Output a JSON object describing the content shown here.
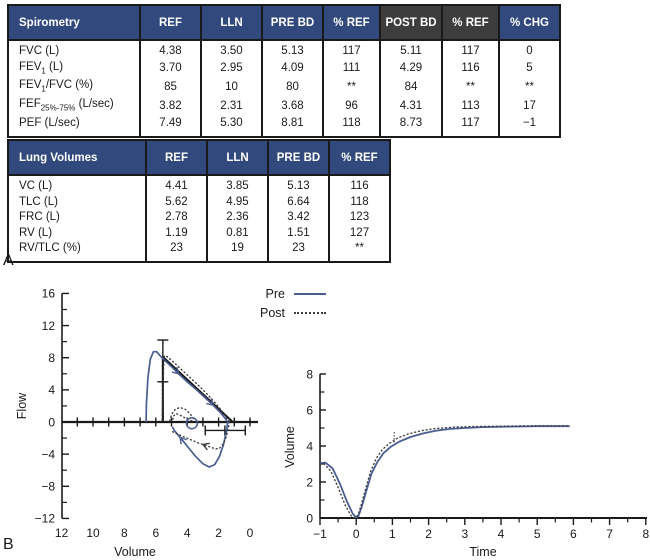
{
  "colors": {
    "header_blue": "#31497d",
    "header_dark": "#3d3d3d",
    "curve_blue": "#4a5d92",
    "dotted_gray": "#3d3d3d",
    "ink": "#1a1a1a"
  },
  "section_labels": {
    "a": "A",
    "b": "B"
  },
  "legend": {
    "pre_label": "Pre",
    "post_label": "Post"
  },
  "spirometry_table": {
    "title": "Spirometry",
    "columns": [
      "REF",
      "LLN",
      "PRE BD",
      "% REF",
      "POST BD",
      "% REF",
      "% CHG"
    ],
    "column_styles": [
      "blue",
      "blue",
      "blue",
      "blue",
      "dark",
      "dark",
      "blue"
    ],
    "rows": [
      {
        "label": "FVC (L)",
        "values": [
          "4.38",
          "3.50",
          "5.13",
          "117",
          "5.11",
          "117",
          "0"
        ]
      },
      {
        "label": "FEV<sub>1</sub> (L)",
        "values": [
          "3.70",
          "2.95",
          "4.09",
          "111",
          "4.29",
          "116",
          "5"
        ]
      },
      {
        "label": "FEV<sub>1</sub>/FVC (%)",
        "values": [
          "85",
          "10",
          "80",
          "**",
          "84",
          "**",
          "**"
        ]
      },
      {
        "label": "FEF<sub>25%-75%</sub> (L/sec)",
        "values": [
          "3.82",
          "2.31",
          "3.68",
          "96",
          "4.31",
          "113",
          "17"
        ]
      },
      {
        "label": "PEF (L/sec)",
        "values": [
          "7.49",
          "5.30",
          "8.81",
          "118",
          "8.73",
          "117",
          "−1"
        ]
      }
    ]
  },
  "lung_volumes_table": {
    "title": "Lung Volumes",
    "columns": [
      "REF",
      "LLN",
      "PRE BD",
      "% REF"
    ],
    "column_styles": [
      "blue",
      "blue",
      "blue",
      "blue"
    ],
    "rows": [
      {
        "label": "VC (L)",
        "values": [
          "4.41",
          "3.85",
          "5.13",
          "116"
        ]
      },
      {
        "label": "TLC (L)",
        "values": [
          "5.62",
          "4.95",
          "6.64",
          "118"
        ]
      },
      {
        "label": "FRC (L)",
        "values": [
          "2.78",
          "2.36",
          "3.42",
          "123"
        ]
      },
      {
        "label": "RV (L)",
        "values": [
          "1.19",
          "0.81",
          "1.51",
          "127"
        ]
      },
      {
        "label": "RV/TLC (%)",
        "values": [
          "23",
          "19",
          "23",
          "**"
        ]
      }
    ]
  },
  "chart_data": [
    {
      "type": "line",
      "id": "flow-volume-loop",
      "title": "",
      "xlabel": "Volume",
      "ylabel": "Flow",
      "xlim": [
        12,
        0
      ],
      "x_reversed": true,
      "ylim": [
        -12,
        16
      ],
      "x_ticks": [
        12,
        10,
        8,
        6,
        4,
        2,
        0
      ],
      "x_axis_tick_marks": [
        11,
        10,
        9,
        8,
        7,
        6,
        5,
        4,
        3,
        2,
        1,
        0
      ],
      "y_ticks": [
        16,
        12,
        8,
        4,
        0,
        -4,
        -8,
        -12
      ],
      "y_minor_ticks": [
        14,
        10,
        6,
        2,
        -2,
        -6,
        -10
      ],
      "legend_position": "top-right",
      "series": [
        {
          "name": "Pre expiratory",
          "style": "solid",
          "points": [
            [
              6.62,
              0
            ],
            [
              6.6,
              2.2
            ],
            [
              6.5,
              5.5
            ],
            [
              6.35,
              7.8
            ],
            [
              6.15,
              8.75
            ],
            [
              5.95,
              8.75
            ],
            [
              5.7,
              8.2
            ],
            [
              5.4,
              7.6
            ],
            [
              5.0,
              6.9
            ],
            [
              4.55,
              6.0
            ],
            [
              4.0,
              5.0
            ],
            [
              3.45,
              4.1
            ],
            [
              2.9,
              3.1
            ],
            [
              2.35,
              2.1
            ],
            [
              1.85,
              1.1
            ],
            [
              1.5,
              0.25
            ],
            [
              1.42,
              0
            ]
          ]
        },
        {
          "name": "Pre inspiratory",
          "style": "solid",
          "points": [
            [
              1.42,
              0
            ],
            [
              1.5,
              -1.2
            ],
            [
              1.7,
              -2.9
            ],
            [
              1.95,
              -4.3
            ],
            [
              2.25,
              -5.3
            ],
            [
              2.6,
              -5.6
            ],
            [
              3.0,
              -5.2
            ],
            [
              3.5,
              -4.2
            ],
            [
              4.0,
              -3.0
            ],
            [
              4.45,
              -1.9
            ],
            [
              4.8,
              -1.1
            ],
            [
              4.95,
              -0.6
            ]
          ]
        },
        {
          "name": "Post expiratory",
          "style": "dotted",
          "points": [
            [
              5.6,
              0.3
            ],
            [
              5.55,
              4.0
            ],
            [
              5.5,
              7.0
            ],
            [
              5.45,
              8.25
            ],
            [
              5.25,
              8.1
            ],
            [
              4.9,
              7.5
            ],
            [
              4.4,
              6.6
            ],
            [
              3.8,
              5.5
            ],
            [
              3.2,
              4.4
            ],
            [
              2.6,
              3.2
            ],
            [
              2.0,
              1.9
            ],
            [
              1.55,
              0.7
            ],
            [
              1.32,
              0
            ]
          ]
        },
        {
          "name": "Post inspiratory",
          "style": "dotted",
          "points": [
            [
              1.32,
              0
            ],
            [
              1.38,
              -0.8
            ],
            [
              1.5,
              -1.8
            ],
            [
              1.7,
              -2.7
            ],
            [
              1.95,
              -3.3
            ],
            [
              2.2,
              -3.35
            ],
            [
              2.7,
              -3.0
            ],
            [
              3.3,
              -2.6
            ],
            [
              3.9,
              -2.1
            ],
            [
              4.5,
              -1.6
            ],
            [
              4.95,
              -1.2
            ]
          ]
        },
        {
          "name": "Post tidal loop",
          "style": "dotted",
          "points": [
            [
              5.1,
              0.15
            ],
            [
              5.0,
              0.95
            ],
            [
              4.75,
              1.6
            ],
            [
              4.45,
              1.8
            ],
            [
              4.1,
              1.55
            ],
            [
              3.8,
              1.0
            ],
            [
              3.6,
              0.4
            ],
            [
              3.7,
              0.15
            ],
            [
              4.0,
              0.35
            ],
            [
              4.35,
              0.75
            ],
            [
              4.7,
              1.05
            ],
            [
              4.9,
              0.7
            ],
            [
              4.92,
              0.3
            ]
          ]
        }
      ],
      "annotations": {
        "predicted_line_vertical": {
          "v": 5.55,
          "f0": 0,
          "f1": 8.1
        },
        "pef_error_bar": {
          "v": 5.55,
          "f0": 5.0,
          "f1": 10.2
        },
        "predicted_line_diagonal": {
          "v0": 5.55,
          "f0": 8.1,
          "v1": 1.1,
          "f1": 0
        },
        "fvc_error_bar": {
          "f": -1.05,
          "v0": 2.85,
          "v1": 0.3,
          "mid_tick_v": 1.6
        },
        "tidal_marker_circle": {
          "v": 3.7,
          "f": -0.15
        },
        "arrows": [
          {
            "v": 4.55,
            "f": 6.0,
            "angle": 45,
            "series": "pre"
          },
          {
            "v": 2.35,
            "f": 2.1,
            "angle": 43,
            "series": "pre"
          },
          {
            "v": 4.45,
            "f": -1.9,
            "angle": 231,
            "series": "pre"
          },
          {
            "v": 3.0,
            "f": -2.8,
            "angle": 200,
            "series": "post"
          }
        ]
      }
    },
    {
      "type": "line",
      "id": "volume-time-curve",
      "title": "",
      "xlabel": "Time",
      "ylabel": "Volume",
      "xlim": [
        -1,
        8
      ],
      "ylim": [
        0,
        8
      ],
      "x_ticks": [
        -1,
        0,
        1,
        2,
        3,
        4,
        5,
        6,
        7,
        8
      ],
      "x_minor_step": 0.5,
      "y_ticks": [
        0,
        2,
        4,
        6,
        8
      ],
      "y_minor_ticks": [
        1,
        3,
        5,
        7
      ],
      "series": [
        {
          "name": "Pre",
          "style": "solid",
          "points": [
            [
              -1,
              3.05
            ],
            [
              -0.85,
              3.08
            ],
            [
              -0.65,
              2.75
            ],
            [
              -0.45,
              1.9
            ],
            [
              -0.25,
              0.9
            ],
            [
              -0.1,
              0.25
            ],
            [
              0,
              0.03
            ],
            [
              0.06,
              0.1
            ],
            [
              0.15,
              0.6
            ],
            [
              0.28,
              1.5
            ],
            [
              0.42,
              2.45
            ],
            [
              0.58,
              3.1
            ],
            [
              0.75,
              3.6
            ],
            [
              0.95,
              3.95
            ],
            [
              1.2,
              4.25
            ],
            [
              1.5,
              4.5
            ],
            [
              1.85,
              4.7
            ],
            [
              2.2,
              4.85
            ],
            [
              2.6,
              4.95
            ],
            [
              3.0,
              5.0
            ],
            [
              3.5,
              5.05
            ],
            [
              4.2,
              5.08
            ],
            [
              5.0,
              5.1
            ],
            [
              5.9,
              5.1
            ]
          ]
        },
        {
          "name": "Post",
          "style": "dotted",
          "points": [
            [
              -1,
              3.0
            ],
            [
              -0.88,
              3.0
            ],
            [
              -0.7,
              2.6
            ],
            [
              -0.5,
              1.7
            ],
            [
              -0.3,
              0.7
            ],
            [
              -0.15,
              0.15
            ],
            [
              -0.05,
              0.0
            ],
            [
              0.05,
              0.15
            ],
            [
              0.15,
              0.8
            ],
            [
              0.27,
              1.7
            ],
            [
              0.4,
              2.6
            ],
            [
              0.55,
              3.3
            ],
            [
              0.72,
              3.8
            ],
            [
              0.92,
              4.15
            ],
            [
              1.15,
              4.45
            ],
            [
              1.45,
              4.68
            ],
            [
              1.8,
              4.85
            ],
            [
              2.2,
              4.97
            ],
            [
              2.7,
              5.05
            ],
            [
              3.2,
              5.08
            ],
            [
              4.0,
              5.1
            ],
            [
              5.0,
              5.12
            ],
            [
              5.9,
              5.12
            ]
          ]
        }
      ],
      "annotations": {
        "fev1_error_tick": {
          "t": 1.05,
          "v0": 4.2,
          "v1": 4.8
        }
      }
    }
  ]
}
